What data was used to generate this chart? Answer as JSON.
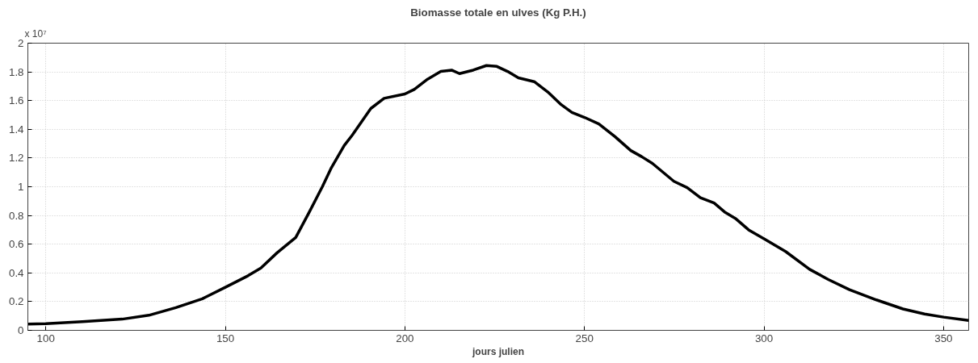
{
  "chart_data": {
    "type": "line",
    "title": "Biomasse totale en ulves (Kg P.H.)",
    "xlabel": "jours julien",
    "annotations": [
      "x 10⁷"
    ],
    "x": [
      95,
      100,
      110.2,
      121.3,
      128.7,
      136.2,
      143.6,
      150,
      156.3,
      159.9,
      164.4,
      169.6,
      173.4,
      177,
      179.4,
      183.1,
      185.3,
      190.5,
      194.2,
      200,
      202.6,
      206.3,
      210,
      213,
      215.2,
      219,
      222.7,
      225.6,
      228.6,
      231.6,
      236,
      239.8,
      243.5,
      246.5,
      250,
      254,
      258.5,
      262.9,
      265.9,
      268.9,
      274.9,
      278.6,
      282.3,
      286.1,
      289,
      292,
      295.7,
      300,
      306,
      312.7,
      317.9,
      323.8,
      331.3,
      338.7,
      344.7,
      350,
      357
    ],
    "series": [
      {
        "color": "#000000",
        "values": [
          0.043,
          0.046,
          0.06,
          0.078,
          0.105,
          0.158,
          0.22,
          0.3,
          0.38,
          0.434,
          0.54,
          0.647,
          0.825,
          1.0,
          1.127,
          1.287,
          1.358,
          1.545,
          1.616,
          1.646,
          1.678,
          1.749,
          1.803,
          1.812,
          1.788,
          1.812,
          1.844,
          1.838,
          1.803,
          1.758,
          1.732,
          1.66,
          1.572,
          1.518,
          1.483,
          1.438,
          1.349,
          1.252,
          1.21,
          1.163,
          1.038,
          0.994,
          0.923,
          0.887,
          0.825,
          0.78,
          0.7,
          0.638,
          0.549,
          0.425,
          0.354,
          0.283,
          0.212,
          0.149,
          0.114,
          0.092,
          0.069
        ]
      }
    ],
    "xlim": [
      95,
      357
    ],
    "xticks": [
      100,
      150,
      200,
      250,
      300,
      350
    ],
    "ylim": [
      0,
      2
    ],
    "yticks": [
      0,
      0.2,
      0.4,
      0.6,
      0.8,
      1,
      1.2,
      1.4,
      1.6,
      1.8,
      2
    ],
    "grid": true,
    "line_style": "solid",
    "marker": "none"
  }
}
